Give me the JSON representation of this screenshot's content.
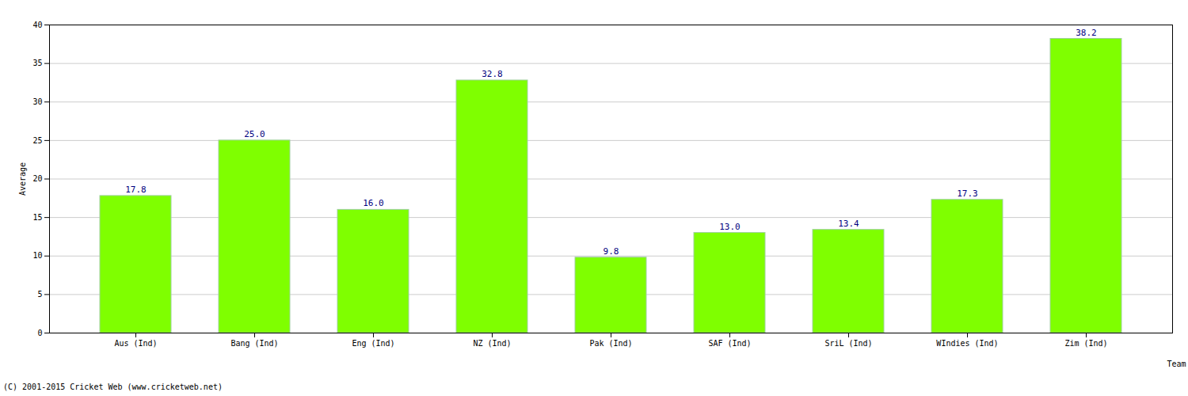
{
  "chart_data": {
    "type": "bar",
    "categories": [
      "Aus (Ind)",
      "Bang (Ind)",
      "Eng (Ind)",
      "NZ (Ind)",
      "Pak (Ind)",
      "SAF (Ind)",
      "SriL (Ind)",
      "WIndies (Ind)",
      "Zim (Ind)"
    ],
    "values": [
      17.8,
      25.0,
      16.0,
      32.8,
      9.8,
      13.0,
      13.4,
      17.3,
      38.2
    ],
    "value_labels": [
      "17.8",
      "25.0",
      "16.0",
      "32.8",
      "9.8",
      "13.0",
      "13.4",
      "17.3",
      "38.2"
    ],
    "data_labels": true,
    "color": "#7fff00",
    "x_label": "Team",
    "y_label": "Average",
    "caption": "(C) 2001-2015 Cricket Web (www.cricketweb.net)",
    "ylim": [
      0,
      40
    ],
    "yticks": [
      0,
      5,
      10,
      15,
      20,
      25,
      30,
      35,
      40
    ],
    "grid": true
  }
}
